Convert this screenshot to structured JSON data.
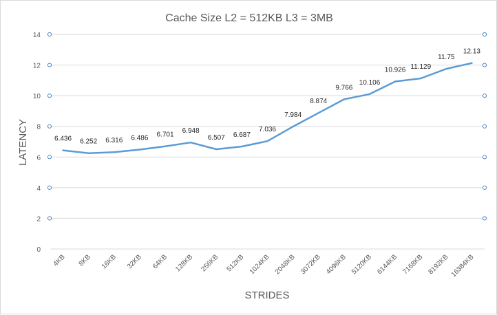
{
  "chart_data": {
    "type": "line",
    "title": "Cache Size L2  = 512KB L3 = 3MB",
    "xlabel": "STRIDES",
    "ylabel": "LATENCY",
    "categories": [
      "4KB",
      "8KB",
      "16KB",
      "32KB",
      "64KB",
      "128KB",
      "256KB",
      "512KB",
      "1024KB",
      "2048KB",
      "3072KB",
      "4096KB",
      "5120KB",
      "6144KB",
      "7168KB",
      "8192KB",
      "16384KB"
    ],
    "series": [
      {
        "values": [
          6.436,
          6.252,
          6.316,
          6.486,
          6.701,
          6.948,
          6.507,
          6.687,
          7.036,
          7.984,
          8.874,
          9.766,
          10.106,
          10.926,
          11.129,
          11.75,
          12.13
        ],
        "labels": [
          "6.436",
          "6.252",
          "6.316",
          "6.486",
          "6.701",
          "6.948",
          "6.507",
          "6.687",
          "7.036",
          "7.984",
          "8.874",
          "9.766",
          "10.106",
          "10.926",
          "11.129",
          "11.75",
          "12.13"
        ],
        "color": "#5b9bd5"
      }
    ],
    "ylim": [
      0,
      14
    ],
    "yticks": [
      0,
      2,
      4,
      6,
      8,
      10,
      12,
      14
    ],
    "grid": true,
    "legend": "none",
    "selection_handle_color": "#4a86c5"
  }
}
